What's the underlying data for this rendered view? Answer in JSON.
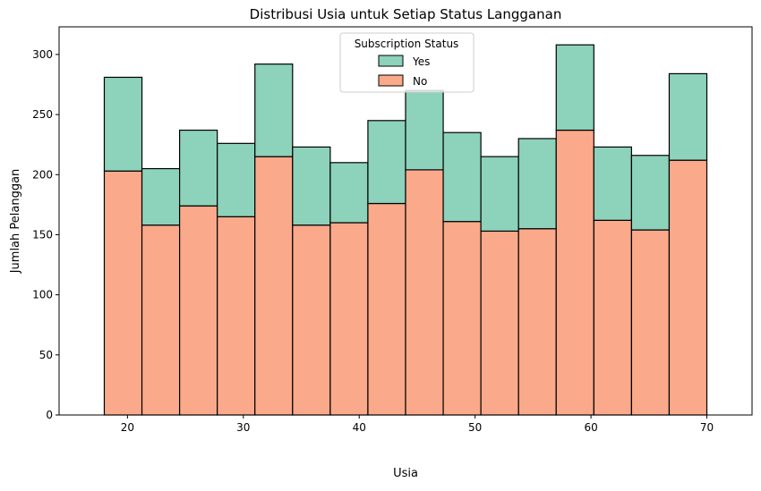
{
  "chart_data": {
    "type": "bar",
    "stacked": true,
    "title": "Distribusi Usia untuk Setiap Status Langganan",
    "xlabel": "Usia",
    "ylabel": "Jumlah Pelanggan",
    "x_min": 18,
    "x_max": 70,
    "bin_count": 16,
    "xlim": [
      14.1,
      73.9
    ],
    "ylim": [
      0,
      323
    ],
    "xticks": [
      20,
      30,
      40,
      50,
      60,
      70
    ],
    "yticks": [
      0,
      50,
      100,
      150,
      200,
      250,
      300
    ],
    "grid": false,
    "legend": {
      "title": "Subscription Status",
      "placement": "top-center",
      "entries": [
        "Yes",
        "No"
      ]
    },
    "series": [
      {
        "name": "No",
        "color": "#fba98b",
        "values": [
          203,
          158,
          174,
          165,
          215,
          158,
          160,
          176,
          204,
          161,
          153,
          155,
          237,
          162,
          154,
          212
        ]
      },
      {
        "name": "Yes",
        "color": "#8dd2bb",
        "values": [
          78,
          47,
          63,
          61,
          77,
          65,
          50,
          69,
          66,
          74,
          62,
          75,
          71,
          61,
          62,
          72
        ]
      }
    ]
  }
}
